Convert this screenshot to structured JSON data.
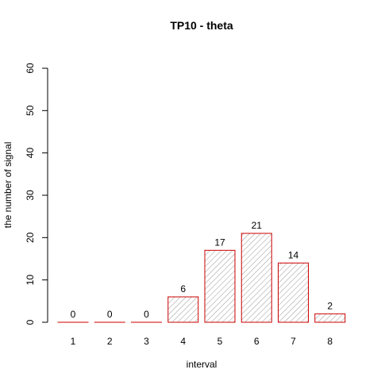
{
  "chart_data": {
    "type": "bar",
    "title": "TP10  -  theta",
    "xlabel": "interval",
    "ylabel": "the number of signal",
    "categories": [
      "1",
      "2",
      "3",
      "4",
      "5",
      "6",
      "7",
      "8"
    ],
    "values": [
      0,
      0,
      0,
      6,
      17,
      21,
      14,
      2
    ],
    "data_labels": [
      "0",
      "0",
      "0",
      "6",
      "17",
      "21",
      "14",
      "2"
    ],
    "ylim": [
      0,
      60
    ],
    "yticks": [
      "0",
      "10",
      "20",
      "30",
      "40",
      "50",
      "60"
    ],
    "grid": false,
    "legend": "none",
    "bar_border_color": "#cc0000",
    "bar_hatch_color": "#8c8c8c"
  }
}
